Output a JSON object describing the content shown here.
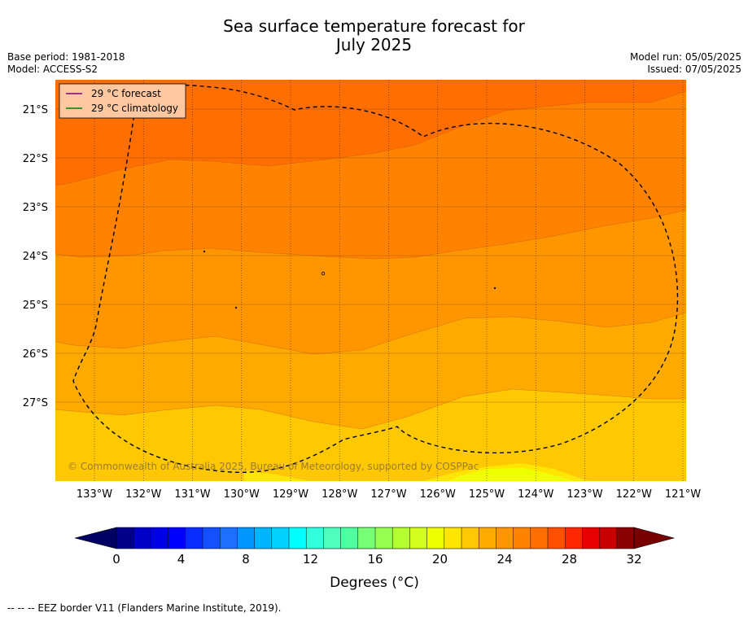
{
  "title": {
    "line1": "Sea surface temperature forecast for",
    "line2": "July 2025"
  },
  "meta": {
    "base_period": "Base period: 1981-2018",
    "model": "Model: ACCESS-S2",
    "model_run": "Model run: 05/05/2025",
    "issued": "Issued: 07/05/2025"
  },
  "legend": {
    "items": [
      {
        "label": "29 °C  forecast",
        "color": "#800080"
      },
      {
        "label": "29 °C  climatology",
        "color": "#008000"
      }
    ]
  },
  "map": {
    "lat_labels": [
      "21°S",
      "22°S",
      "23°S",
      "24°S",
      "25°S",
      "26°S",
      "27°S"
    ],
    "lon_labels": [
      "133°W",
      "132°W",
      "131°W",
      "130°W",
      "129°W",
      "128°W",
      "127°W",
      "126°W",
      "125°W",
      "124°W",
      "123°W",
      "122°W",
      "121°W"
    ],
    "copyright": "© Commonwealth of Australia 2025, Bureau of Meteorology, supported by COSPPac"
  },
  "colorbar": {
    "tick_labels": [
      "0",
      "4",
      "8",
      "12",
      "16",
      "20",
      "24",
      "28",
      "32"
    ],
    "label": "Degrees ($^\\circ$C)",
    "label_display": "Degrees (°C)",
    "colors": [
      "#00008b",
      "#0000c8",
      "#0000e6",
      "#0000ff",
      "#0a2dff",
      "#1450ff",
      "#1e6eff",
      "#0096ff",
      "#00b4ff",
      "#00d2ff",
      "#00ffff",
      "#32ffdc",
      "#4effbe",
      "#50ffa0",
      "#78ff78",
      "#96ff50",
      "#b4ff32",
      "#d2ff1e",
      "#f0ff00",
      "#ffe600",
      "#ffc800",
      "#ffaa00",
      "#ff9600",
      "#ff8200",
      "#ff6e00",
      "#ff5000",
      "#ff2800",
      "#e60000",
      "#c80000",
      "#8b0000"
    ],
    "under_color": "#000064",
    "over_color": "#780000"
  },
  "footer": "--  --  -- EEZ border V11 (Flanders Marine Institute, 2019)."
}
